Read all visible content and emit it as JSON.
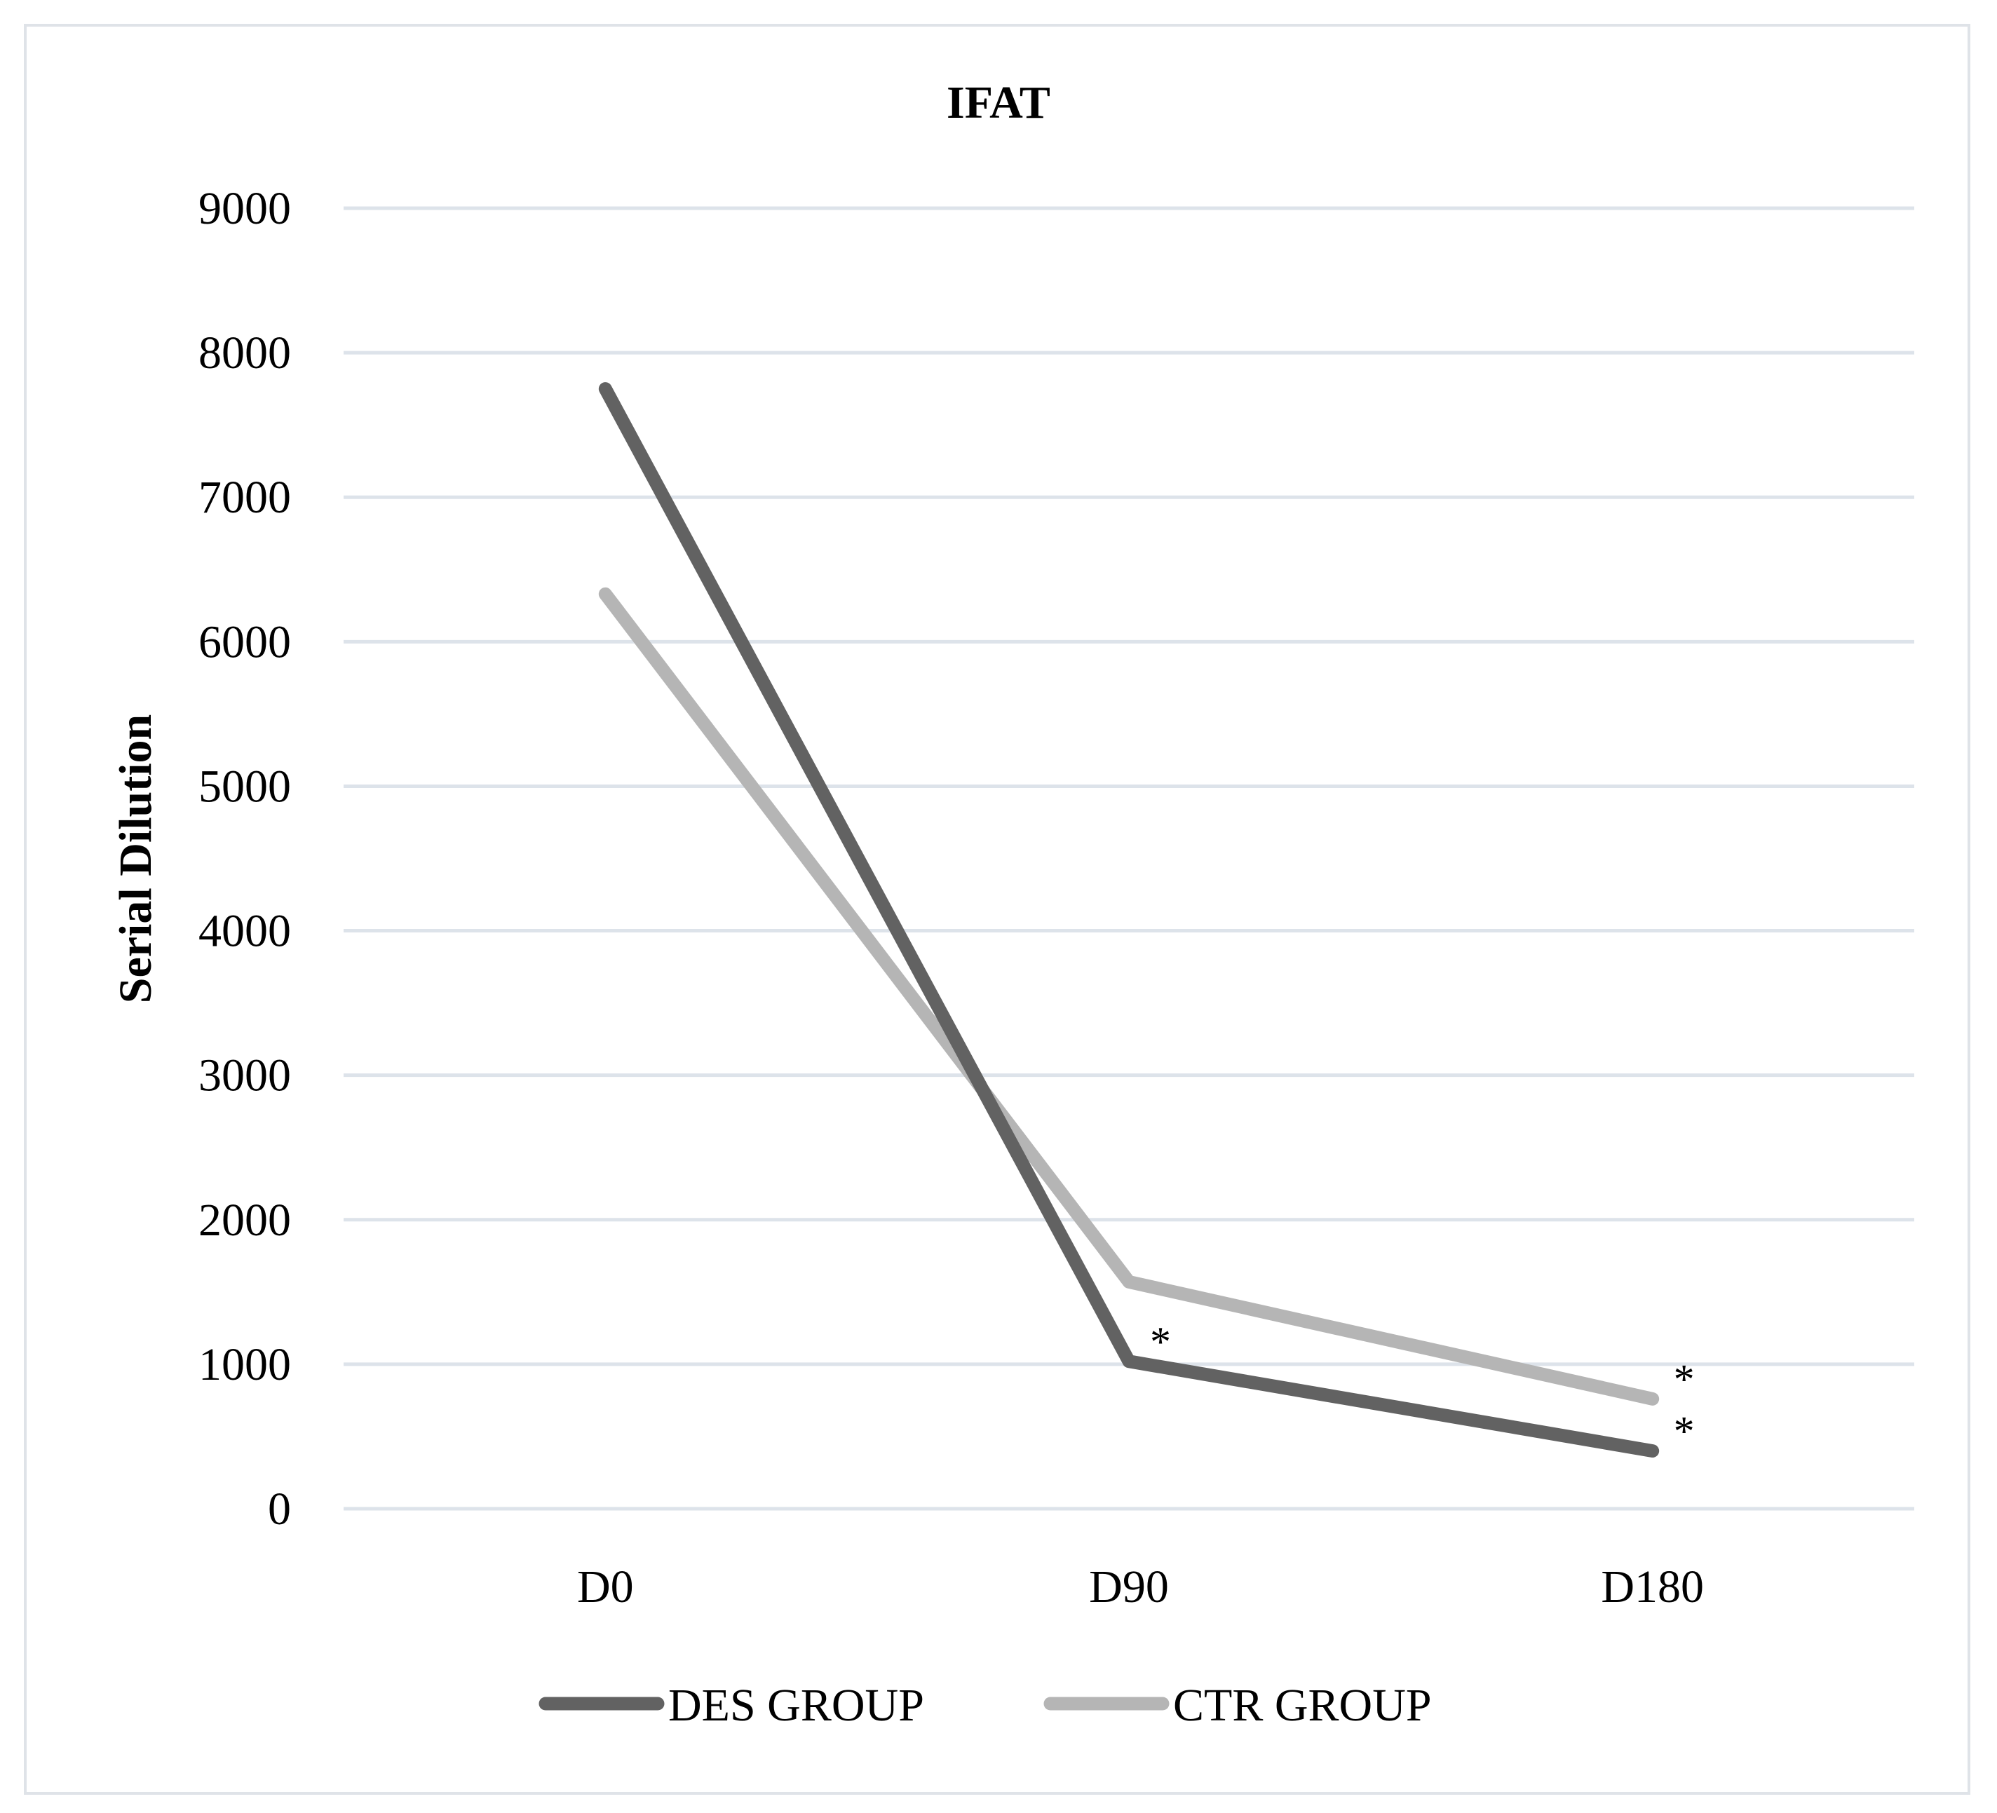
{
  "chart_data": {
    "type": "line",
    "title": "IFAT",
    "xlabel": "",
    "ylabel": "Serial Dilution",
    "categories": [
      "D0",
      "D90",
      "D180"
    ],
    "ylim": [
      0,
      9000
    ],
    "yticks": [
      "0",
      "1000",
      "2000",
      "3000",
      "4000",
      "5000",
      "6000",
      "7000",
      "8000",
      "9000"
    ],
    "grid": true,
    "legend": "bottom",
    "series": [
      {
        "name": "DES GROUP",
        "color": "#626262",
        "values": [
          7750,
          1020,
          400
        ],
        "annotations": [
          "",
          "*",
          "*"
        ]
      },
      {
        "name": "CTR GROUP",
        "color": "#b5b5b5",
        "values": [
          6330,
          1570,
          760
        ],
        "annotations": [
          "",
          "",
          "*"
        ]
      }
    ]
  }
}
